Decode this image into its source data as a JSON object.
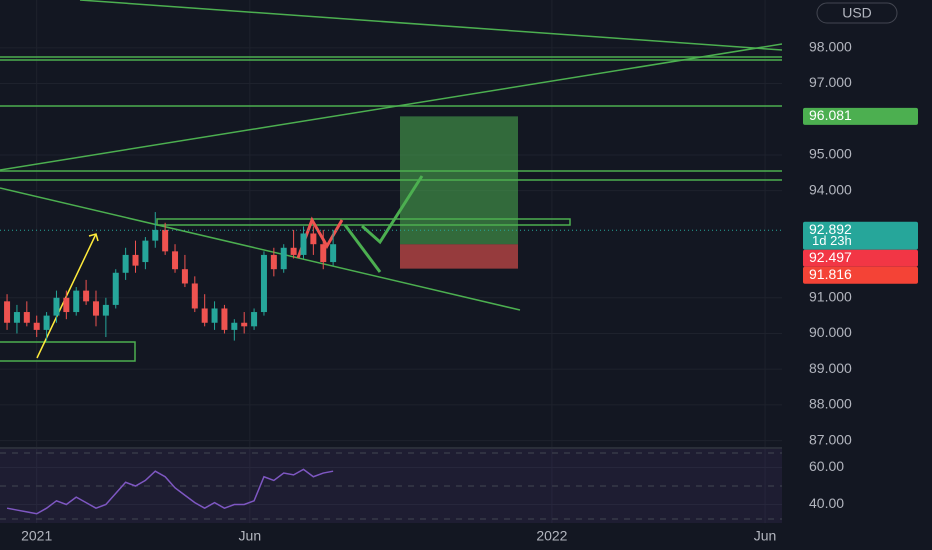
{
  "chart_data": [
    {
      "type": "candlestick",
      "currency": "USD",
      "x": [
        -21,
        -14,
        -7,
        0,
        7,
        14,
        21,
        28,
        35,
        42,
        49,
        56,
        63,
        70,
        77,
        84,
        91,
        98,
        105,
        112,
        119,
        126,
        133,
        140,
        147,
        154,
        161,
        168,
        175,
        182,
        189,
        196,
        203,
        210
      ],
      "ohlc": [
        [
          90.9,
          91.1,
          90.1,
          90.3
        ],
        [
          90.3,
          90.8,
          90.0,
          90.6
        ],
        [
          90.6,
          90.9,
          90.2,
          90.3
        ],
        [
          90.3,
          90.5,
          89.9,
          90.1
        ],
        [
          90.1,
          90.6,
          89.8,
          90.5
        ],
        [
          90.5,
          91.2,
          90.3,
          91.0
        ],
        [
          91.0,
          91.2,
          90.4,
          90.6
        ],
        [
          90.6,
          91.3,
          90.5,
          91.2
        ],
        [
          91.2,
          91.5,
          90.8,
          90.9
        ],
        [
          90.9,
          91.2,
          90.2,
          90.5
        ],
        [
          90.5,
          91.0,
          89.9,
          90.8
        ],
        [
          90.8,
          91.8,
          90.7,
          91.7
        ],
        [
          91.7,
          92.4,
          91.5,
          92.2
        ],
        [
          92.2,
          92.6,
          91.7,
          91.9
        ],
        [
          92.0,
          92.7,
          91.8,
          92.6
        ],
        [
          92.6,
          93.4,
          92.4,
          92.9
        ],
        [
          92.9,
          93.1,
          92.2,
          92.3
        ],
        [
          92.3,
          92.5,
          91.7,
          91.8
        ],
        [
          91.8,
          92.2,
          91.3,
          91.4
        ],
        [
          91.4,
          91.6,
          90.6,
          90.7
        ],
        [
          90.7,
          91.1,
          90.2,
          90.3
        ],
        [
          90.3,
          90.9,
          90.1,
          90.7
        ],
        [
          90.7,
          90.8,
          90.0,
          90.1
        ],
        [
          90.1,
          90.4,
          89.8,
          90.3
        ],
        [
          90.3,
          90.6,
          90.0,
          90.2
        ],
        [
          90.2,
          90.7,
          90.1,
          90.6
        ],
        [
          90.6,
          92.3,
          90.5,
          92.2
        ],
        [
          92.2,
          92.4,
          91.6,
          91.8
        ],
        [
          91.8,
          92.5,
          91.7,
          92.4
        ],
        [
          92.4,
          92.9,
          92.1,
          92.2
        ],
        [
          92.2,
          93.0,
          92.1,
          92.8
        ],
        [
          92.8,
          93.0,
          92.2,
          92.5
        ],
        [
          92.5,
          92.9,
          91.8,
          92.0
        ],
        [
          92.0,
          92.9,
          91.9,
          92.5
        ]
      ],
      "up_color": "#26a69a",
      "down_color": "#ef5350",
      "xlim": [
        -26,
        528
      ],
      "ylim": [
        86.82,
        99.34
      ],
      "xticks": [
        {
          "value": 0,
          "label": "2021"
        },
        {
          "value": 151,
          "label": "Jun"
        },
        {
          "value": 365,
          "label": "2022"
        },
        {
          "value": 516,
          "label": "Jun"
        }
      ],
      "yticks": [
        {
          "value": 87,
          "label": "87.000"
        },
        {
          "value": 88,
          "label": "88.000"
        },
        {
          "value": 89,
          "label": "89.000"
        },
        {
          "value": 90,
          "label": "90.000"
        },
        {
          "value": 91,
          "label": "91.000"
        },
        {
          "value": 94,
          "label": "94.000"
        },
        {
          "value": 95,
          "label": "95.000"
        },
        {
          "value": 97,
          "label": "97.000"
        },
        {
          "value": 98,
          "label": "98.000"
        }
      ],
      "grid": true,
      "price_labels": [
        {
          "value": 96.081,
          "color": "#4caf50"
        },
        {
          "value": 92.892,
          "color": "#26a69a",
          "countdown": "1d 23h"
        },
        {
          "value": 92.497,
          "color": "#f23645"
        },
        {
          "value": 91.816,
          "color": "#f44336"
        }
      ]
    },
    {
      "type": "line",
      "x": [
        -21,
        -14,
        -7,
        0,
        7,
        14,
        21,
        28,
        35,
        42,
        49,
        56,
        63,
        70,
        77,
        84,
        91,
        98,
        105,
        112,
        119,
        126,
        133,
        140,
        147,
        154,
        161,
        168,
        175,
        182,
        189,
        196,
        203,
        210
      ],
      "values": [
        38,
        37,
        36,
        35,
        38,
        42,
        40,
        44,
        41,
        38,
        40,
        46,
        52,
        50,
        53,
        58,
        55,
        49,
        45,
        41,
        38,
        41,
        38,
        40,
        40,
        42,
        55,
        53,
        57,
        56,
        59,
        55,
        57,
        58
      ],
      "color": "#7e57c2",
      "ylim": [
        30,
        70
      ],
      "yticks": [
        {
          "value": 40,
          "label": "40.00"
        },
        {
          "value": 60,
          "label": "60.00"
        }
      ]
    }
  ]
}
